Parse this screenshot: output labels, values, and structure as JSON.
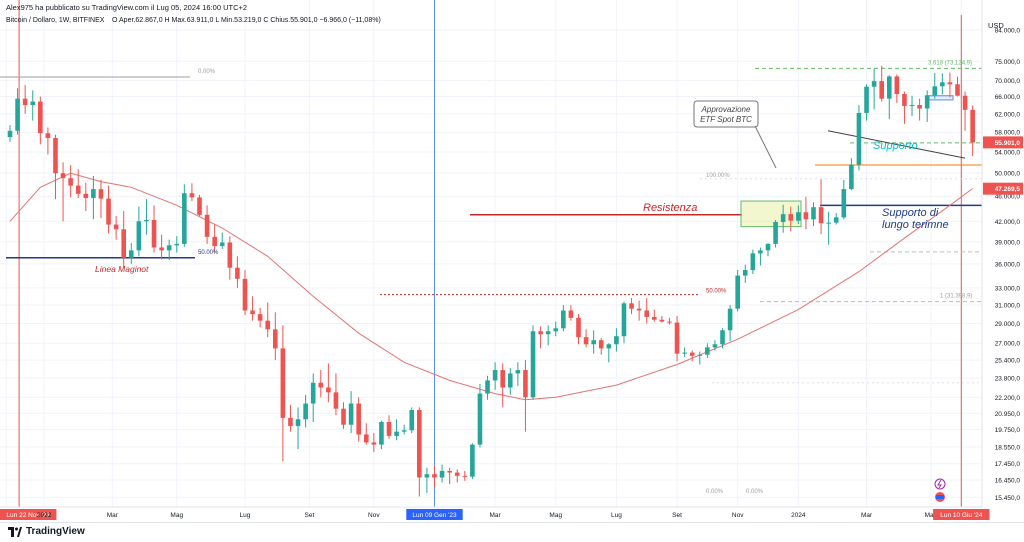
{
  "header": {
    "publisher": "Alex975 ha pubblicato su TradingView.com il Lug 05, 2024 16:00 UTC+2",
    "symbol": "Bitcoin / Dollaro, 1W, BITFINEX",
    "ohlc": "O Aper.62.867,0  H Max.63.911,0  L Min.53.219,0  C Chius.55.901,0  −6.966,0 (−11,08%)"
  },
  "currency": "USD",
  "footer": {
    "brand": "TradingView"
  },
  "colors": {
    "up": "#26a69a",
    "down": "#ef5350",
    "ma": "#e57373",
    "blue": "#1e3a8a",
    "cyan": "#00bcd4",
    "resistance": "#c62828",
    "orange": "#f57c00",
    "green_dash": "#66bb6a"
  },
  "chart_data": {
    "type": "candlestick",
    "title": "Bitcoin / Dollaro, 1W, BITFINEX",
    "y_axis": {
      "scale": "log",
      "ylim": [
        15300,
        84000
      ],
      "tick_labels": [
        "84.000,0",
        "75.000,0",
        "70.000,0",
        "66.000,0",
        "62.000,0",
        "58.000,0",
        "54.000,0",
        "50.000,0",
        "46.000,0",
        "42.000,0",
        "39.000,0",
        "36.000,0",
        "33.000,0",
        "31.000,0",
        "29.000,0",
        "27.000,0",
        "25.400,0",
        "23.800,0",
        "22.200,0",
        "20.950,0",
        "19.750,0",
        "18.550,0",
        "17.450,0",
        "16.450,0",
        "15.450,0"
      ],
      "tick_values": [
        84000,
        75000,
        70000,
        66000,
        62000,
        58000,
        54000,
        50000,
        46000,
        42000,
        39000,
        36000,
        33000,
        31000,
        29000,
        27000,
        25400,
        23800,
        22200,
        20950,
        19750,
        18550,
        17450,
        16450,
        15450
      ],
      "price_labels": [
        {
          "text": "55.901,0",
          "value": 55901,
          "color": "#ef5350"
        },
        {
          "text": "47.269,5",
          "value": 47269.5,
          "color": "#ef5350"
        }
      ]
    },
    "x_axis": {
      "labels": [
        "'21",
        "Lun 22 Nov '21",
        "2022",
        "Mar",
        "Mag",
        "Lug",
        "Set",
        "Nov",
        "Lun 09 Gen '23",
        "Mar",
        "Mag",
        "Lug",
        "Set",
        "Nov",
        "2024",
        "Mar",
        "Mag",
        "Lun 10 Giu '24"
      ],
      "label_index": [
        -0.5,
        1.2,
        4.5,
        13.5,
        22,
        31,
        39.5,
        48,
        56,
        64,
        72,
        80,
        88,
        96,
        104,
        113,
        121.5,
        125.5
      ],
      "highlighted": [
        "'21",
        "Lun 22 Nov '21",
        "Lun 09 Gen '23",
        "Lun 10 Giu '24"
      ]
    },
    "candles_ohlc": [
      [
        57000,
        59500,
        56000,
        58300
      ],
      [
        58300,
        68000,
        57500,
        65500
      ],
      [
        65500,
        68800,
        62000,
        64000
      ],
      [
        64000,
        67500,
        60500,
        64800
      ],
      [
        64800,
        66000,
        55500,
        57800
      ],
      [
        57800,
        59000,
        53500,
        56800
      ],
      [
        56800,
        57500,
        45500,
        50000
      ],
      [
        50000,
        52000,
        42000,
        49100
      ],
      [
        49100,
        51500,
        45800,
        47800
      ],
      [
        47800,
        50700,
        45700,
        46400
      ],
      [
        46400,
        48300,
        43600,
        45700
      ],
      [
        45700,
        49500,
        42300,
        47200
      ],
      [
        47200,
        48800,
        42500,
        45600
      ],
      [
        45600,
        47800,
        40200,
        41500
      ],
      [
        41500,
        42800,
        39300,
        40800
      ],
      [
        40800,
        43600,
        35500,
        36800
      ],
      [
        36800,
        38800,
        36000,
        37800
      ],
      [
        37800,
        44300,
        37000,
        42000
      ],
      [
        42000,
        45500,
        40000,
        42200
      ],
      [
        42200,
        44500,
        37500,
        38200
      ],
      [
        38200,
        40000,
        36600,
        37800
      ],
      [
        37800,
        39300,
        36500,
        38500
      ],
      [
        38500,
        39800,
        37500,
        38700
      ],
      [
        38700,
        48000,
        38300,
        46500
      ],
      [
        46500,
        48200,
        45200,
        45800
      ],
      [
        45800,
        46200,
        42800,
        43000
      ],
      [
        43000,
        44500,
        38700,
        39700
      ],
      [
        39700,
        41500,
        37500,
        38400
      ],
      [
        38400,
        40300,
        38000,
        38900
      ],
      [
        38900,
        39800,
        34000,
        35500
      ],
      [
        35500,
        37000,
        33000,
        34100
      ],
      [
        34100,
        35200,
        29900,
        30400
      ],
      [
        30400,
        32000,
        29300,
        30000
      ],
      [
        30000,
        30700,
        28600,
        29300
      ],
      [
        29300,
        31300,
        27600,
        28400
      ],
      [
        28400,
        30200,
        25400,
        26500
      ],
      [
        26500,
        28800,
        17600,
        20600
      ],
      [
        20600,
        21600,
        19600,
        20000
      ],
      [
        20000,
        21400,
        18400,
        20500
      ],
      [
        20500,
        22400,
        19900,
        21700
      ],
      [
        21700,
        24200,
        20300,
        23400
      ],
      [
        23400,
        24500,
        22200,
        23000
      ],
      [
        23000,
        25100,
        21800,
        22600
      ],
      [
        22600,
        24200,
        20800,
        21300
      ],
      [
        21300,
        21800,
        19800,
        20100
      ],
      [
        20100,
        22700,
        19500,
        21700
      ],
      [
        21700,
        22200,
        18900,
        19400
      ],
      [
        19400,
        20200,
        18700,
        18850
      ],
      [
        18850,
        19500,
        18200,
        18700
      ],
      [
        18700,
        20400,
        18400,
        20300
      ],
      [
        20300,
        20800,
        19100,
        19300
      ],
      [
        19300,
        20500,
        19000,
        19600
      ],
      [
        19600,
        20100,
        19400,
        19700
      ],
      [
        19700,
        21400,
        19500,
        21200
      ],
      [
        21200,
        21400,
        15500,
        16600
      ],
      [
        16600,
        17200,
        15700,
        16800
      ],
      [
        16800,
        17300,
        16000,
        16600
      ],
      [
        16600,
        17400,
        16300,
        17000
      ],
      [
        17000,
        17200,
        16200,
        16900
      ],
      [
        16900,
        17100,
        16300,
        16700
      ],
      [
        16700,
        17000,
        16400,
        16650
      ],
      [
        16650,
        18800,
        16500,
        18700
      ],
      [
        18700,
        23300,
        18500,
        22500
      ],
      [
        22500,
        24000,
        22000,
        23600
      ],
      [
        23600,
        25200,
        22800,
        24500
      ],
      [
        24500,
        25100,
        21400,
        23000
      ],
      [
        23000,
        24700,
        22400,
        24200
      ],
      [
        24200,
        25200,
        23100,
        24500
      ],
      [
        24500,
        25400,
        19600,
        22200
      ],
      [
        22200,
        28800,
        22000,
        28200
      ],
      [
        28200,
        28700,
        26500,
        27900
      ],
      [
        27900,
        28800,
        26800,
        28200
      ],
      [
        28200,
        29200,
        27700,
        28500
      ],
      [
        28500,
        31000,
        28200,
        30400
      ],
      [
        30400,
        31000,
        29300,
        29600
      ],
      [
        29600,
        30000,
        26900,
        27600
      ],
      [
        27600,
        28400,
        26600,
        26900
      ],
      [
        26900,
        28300,
        26000,
        27300
      ],
      [
        27300,
        27500,
        25900,
        26500
      ],
      [
        26500,
        27000,
        25200,
        26900
      ],
      [
        26900,
        28500,
        26200,
        27700
      ],
      [
        27700,
        31400,
        27000,
        31200
      ],
      [
        31200,
        31800,
        30000,
        30600
      ],
      [
        30600,
        31500,
        29300,
        30400
      ],
      [
        30400,
        31800,
        29000,
        29700
      ],
      [
        29700,
        30500,
        29200,
        29400
      ],
      [
        29400,
        29800,
        29100,
        29200
      ],
      [
        29200,
        29600,
        28900,
        29100
      ],
      [
        29100,
        29800,
        25300,
        26000
      ],
      [
        26000,
        26600,
        25700,
        26100
      ],
      [
        26100,
        26300,
        25300,
        25800
      ],
      [
        25800,
        26200,
        25000,
        25900
      ],
      [
        25900,
        27000,
        25600,
        26600
      ],
      [
        26600,
        27300,
        26300,
        26900
      ],
      [
        26900,
        28500,
        26500,
        28300
      ],
      [
        28300,
        31000,
        27200,
        30600
      ],
      [
        30600,
        35200,
        30300,
        34500
      ],
      [
        34500,
        35900,
        33600,
        35200
      ],
      [
        35200,
        37900,
        34700,
        37400
      ],
      [
        37400,
        38200,
        35800,
        37800
      ],
      [
        37800,
        38800,
        37000,
        38700
      ],
      [
        38700,
        42200,
        38200,
        41900
      ],
      [
        41900,
        44600,
        40300,
        43100
      ],
      [
        43100,
        44300,
        40500,
        42100
      ],
      [
        42100,
        44500,
        41600,
        43400
      ],
      [
        43400,
        45900,
        40800,
        42300
      ],
      [
        42300,
        45000,
        41300,
        44200
      ],
      [
        44200,
        48900,
        40100,
        41700
      ],
      [
        41700,
        43500,
        38600,
        41800
      ],
      [
        41800,
        43300,
        41500,
        42600
      ],
      [
        42600,
        48800,
        42300,
        47200
      ],
      [
        47200,
        52800,
        47000,
        51600
      ],
      [
        51600,
        64000,
        50500,
        62200
      ],
      [
        62200,
        69000,
        60500,
        68400
      ],
      [
        68400,
        73000,
        63000,
        69800
      ],
      [
        69800,
        73800,
        64800,
        65500
      ],
      [
        65500,
        71300,
        60800,
        71000
      ],
      [
        71000,
        71500,
        64500,
        66600
      ],
      [
        66600,
        67200,
        59800,
        63800
      ],
      [
        63800,
        66200,
        61500,
        64000
      ],
      [
        64000,
        65500,
        60500,
        63200
      ],
      [
        63200,
        67500,
        60200,
        66300
      ],
      [
        66300,
        71900,
        65500,
        68500
      ],
      [
        68500,
        71800,
        66500,
        69500
      ],
      [
        69500,
        72000,
        65800,
        69000
      ],
      [
        69000,
        70900,
        66000,
        66200
      ],
      [
        66200,
        67200,
        58300,
        62900
      ],
      [
        62900,
        63900,
        53200,
        55900
      ]
    ],
    "moving_average": {
      "color": "#e57373",
      "values": [
        [
          0,
          42000
        ],
        [
          4,
          47500
        ],
        [
          8,
          50000
        ],
        [
          12,
          48500
        ],
        [
          16,
          47500
        ],
        [
          22,
          44500
        ],
        [
          28,
          41000
        ],
        [
          34,
          37000
        ],
        [
          40,
          32000
        ],
        [
          46,
          28000
        ],
        [
          52,
          25200
        ],
        [
          58,
          23600
        ],
        [
          64,
          22500
        ],
        [
          68,
          22000
        ],
        [
          72,
          22200
        ],
        [
          80,
          23200
        ],
        [
          88,
          25000
        ],
        [
          96,
          27400
        ],
        [
          104,
          30500
        ],
        [
          112,
          35000
        ],
        [
          118,
          39500
        ],
        [
          124,
          44500
        ],
        [
          127,
          47300
        ]
      ]
    },
    "annotations": [
      {
        "text": "Linea Maginot",
        "color": "#c62828"
      },
      {
        "text": "Resistenza",
        "color": "#c62828"
      },
      {
        "text": "Supporto",
        "color": "#00bcd4"
      },
      {
        "text": "Supporto di",
        "color": "#1e3a8a"
      },
      {
        "text": "lungo terimne",
        "color": "#1e3a8a"
      },
      {
        "text": "Approvazione",
        "color": "#444444"
      },
      {
        "text": "ETF Spot BTC",
        "color": "#444444"
      },
      {
        "text": "0.00%",
        "color": "#9e9e9e"
      },
      {
        "text": "50.00%",
        "color": "#1e3a8a"
      },
      {
        "text": "100.00%",
        "color": "#9e9e9e"
      },
      {
        "text": "50.00%",
        "color": "#c62828"
      },
      {
        "text": "3.618 (73.124,9)",
        "color": "#66bb6a"
      },
      {
        "text": "1 (31.398,9)",
        "color": "#9e9e9e"
      },
      {
        "text": "0.00%",
        "color": "#9e9e9e"
      },
      {
        "text": "0.00%",
        "color": "#9e9e9e"
      }
    ],
    "levels": [
      {
        "name": "linea-maginot",
        "price": 36800,
        "color": "#1e3a8a"
      },
      {
        "name": "resistenza",
        "price": 43000,
        "color": "#c62828"
      },
      {
        "name": "supporto-di-lungo-termine",
        "price": 44500,
        "color": "#1e3a8a"
      },
      {
        "name": "supporto-orange",
        "price": 51500,
        "color": "#f57c00"
      },
      {
        "name": "green-dashed-top",
        "price": 73100,
        "color": "#66bb6a"
      },
      {
        "name": "green-dashed-mid",
        "price": 55800,
        "color": "#66bb6a"
      },
      {
        "name": "red-dotted-50",
        "price": 32200,
        "color": "#c62828"
      }
    ]
  }
}
